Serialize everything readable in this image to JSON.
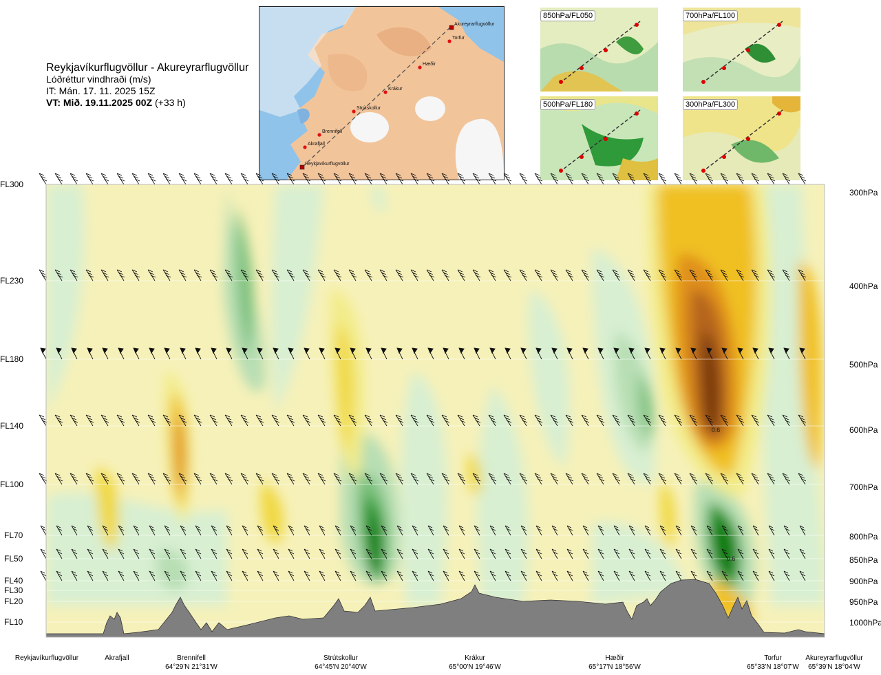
{
  "header": {
    "route": "Reykjavíkurflugvöllur - Akureyrarflugvöllur",
    "quantity": "Lóðréttur vindhraði (m/s)",
    "issue_time": "IT: Mán. 17. 11. 2025 15Z",
    "valid_prefix": "VT: Mið. 19.11.2025 00Z",
    "valid_suffix": "(+33 h)"
  },
  "map": {
    "points": [
      {
        "name": "Akureyrarflugvöllur"
      },
      {
        "name": "Torfur"
      },
      {
        "name": "Hæðir"
      },
      {
        "name": "Krákur"
      },
      {
        "name": "Strútskollur"
      },
      {
        "name": "Brennifell"
      },
      {
        "name": "Akrafjall"
      },
      {
        "name": "Reykjavíkurflugvöllur"
      }
    ]
  },
  "panels": [
    {
      "label": "850hPa/FL050"
    },
    {
      "label": "700hPa/FL100"
    },
    {
      "label": "500hPa/FL180"
    },
    {
      "label": "300hPa/FL300"
    }
  ],
  "chart_data": {
    "type": "heatmap",
    "title": "Reykjavíkurflugvöllur - Akureyrarflugvöllur",
    "quantity": "Lóðréttur vindhraði (m/s)",
    "y_levels": [
      {
        "fl": "FL300",
        "hpa": "300hPa"
      },
      {
        "fl": "FL230",
        "hpa": "400hPa"
      },
      {
        "fl": "FL180",
        "hpa": "500hPa"
      },
      {
        "fl": "FL140",
        "hpa": "600hPa"
      },
      {
        "fl": "FL100",
        "hpa": "700hPa"
      },
      {
        "fl": "FL70",
        "hpa": "800hPa"
      },
      {
        "fl": "FL50",
        "hpa": "850hPa"
      },
      {
        "fl": "FL40",
        "hpa": "900hPa"
      },
      {
        "fl": "FL30",
        "hpa": ""
      },
      {
        "fl": "FL20",
        "hpa": "950hPa"
      },
      {
        "fl": "FL10",
        "hpa": "1000hPa"
      }
    ],
    "x_locations": [
      {
        "name": "Reykjavíkurflugvöllur",
        "coord": ""
      },
      {
        "name": "Akrafjall",
        "coord": ""
      },
      {
        "name": "Brennifell",
        "coord": "64°29'N 21°31'W"
      },
      {
        "name": "Strútskollur",
        "coord": "64°45'N 20°40'W"
      },
      {
        "name": "Krákur",
        "coord": "65°00'N 19°46'W"
      },
      {
        "name": "Hæðir",
        "coord": "65°17'N 18°56'W"
      },
      {
        "name": "Torfur",
        "coord": "65°33'N 18°07'W"
      },
      {
        "name": "Akureyrarflugvöllur",
        "coord": "65°39'N 18°04'W"
      }
    ],
    "annotations": [
      "0.6",
      "0.6"
    ],
    "colors": {
      "strong_down_1": "#7a3a10",
      "strong_down_2": "#b5651d",
      "down_3": "#e0901e",
      "down_2": "#f0c020",
      "down_1": "#f3ec8a",
      "weak_down": "#f8f3c0",
      "neutral": "#fffdf0",
      "weak_up": "#d8efd2",
      "up_1": "#b7deb4",
      "up_2": "#78bf7a",
      "up_3": "#2c9a32",
      "strong_up": "#0b7a10",
      "terrain": "#7f7f7f"
    }
  }
}
